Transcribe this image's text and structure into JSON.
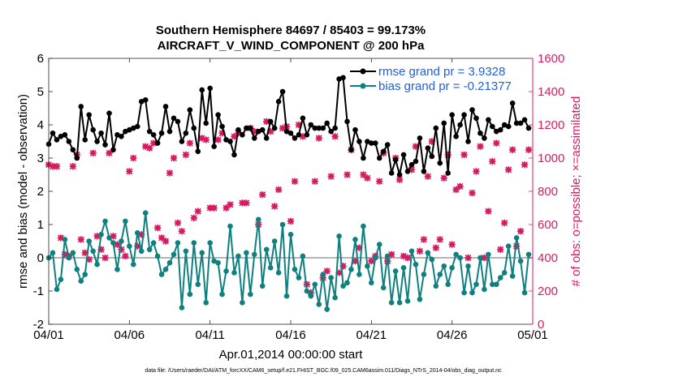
{
  "chart_data": {
    "type": "line",
    "title": "Southern Hemisphere 84697 / 85403 = 99.173%",
    "subtitle": "AIRCRAFT_V_WIND_COMPONENT @ 200 hPa",
    "xlabel": "Apr.01,2014 00:00:00 start",
    "ylabel_left": "rmse and bias (model - observation)",
    "ylabel_right": "# of obs: o=possible; ×=assimilated",
    "footer": "data file: /Users/raeder/DAI/ATM_forcXX/CAM6_setup/f.e21.FHIST_BGC.f09_025.CAM6assim.011/Diags_NTrS_2014-04/obs_diag_output.nc",
    "x_range": [
      0,
      30
    ],
    "x_ticks": [
      0,
      5,
      10,
      15,
      20,
      25,
      30
    ],
    "x_tick_labels": [
      "04/01",
      "04/06",
      "04/11",
      "04/16",
      "04/21",
      "04/26",
      "05/01"
    ],
    "ylim_left": [
      -2,
      6
    ],
    "yticks_left": [
      "-2",
      "-1",
      "0",
      "1",
      "2",
      "3",
      "4",
      "5",
      "6"
    ],
    "ylim_right": [
      0,
      1600
    ],
    "yticks_right": [
      "0",
      "200",
      "400",
      "600",
      "800",
      "1000",
      "1200",
      "1400",
      "1600"
    ],
    "legend": [
      "rmse grand pr = 3.9328",
      "bias grand pr = -0.21377"
    ],
    "colors": {
      "rmse": "#000000",
      "bias": "#0f8080",
      "obs": "#d81b60",
      "zero_line": "#b4b4b4",
      "right_axis": "#d81b60",
      "legend_text": "#1f5fe0"
    },
    "series": [
      {
        "name": "rmse",
        "x": [
          0.0,
          0.25,
          0.5,
          0.75,
          1.0,
          1.25,
          1.5,
          1.75,
          2.0,
          2.25,
          2.5,
          2.75,
          3.0,
          3.25,
          3.5,
          3.75,
          4.0,
          4.25,
          4.5,
          4.75,
          5.0,
          5.25,
          5.5,
          5.75,
          6.0,
          6.25,
          6.5,
          6.75,
          7.0,
          7.25,
          7.5,
          7.75,
          8.0,
          8.25,
          8.5,
          8.75,
          9.0,
          9.25,
          9.5,
          9.75,
          10.0,
          10.25,
          10.5,
          10.75,
          11.0,
          11.25,
          11.5,
          11.75,
          12.0,
          12.25,
          12.5,
          12.75,
          13.0,
          13.25,
          13.5,
          13.75,
          14.0,
          14.25,
          14.5,
          14.75,
          15.0,
          15.25,
          15.5,
          15.75,
          16.0,
          16.25,
          16.5,
          16.75,
          17.0,
          17.25,
          17.5,
          17.75,
          18.0,
          18.25,
          18.5,
          18.75,
          19.0,
          19.25,
          19.5,
          19.75,
          20.0,
          20.25,
          20.5,
          20.75,
          21.0,
          21.25,
          21.5,
          21.75,
          22.0,
          22.25,
          22.5,
          22.75,
          23.0,
          23.25,
          23.5,
          23.75,
          24.0,
          24.25,
          24.5,
          24.75,
          25.0,
          25.25,
          25.5,
          25.75,
          26.0,
          26.25,
          26.5,
          26.75,
          27.0,
          27.25,
          27.5,
          27.75,
          28.0,
          28.25,
          28.5,
          28.75,
          29.0,
          29.25,
          29.5,
          29.75
        ],
        "values": [
          3.42,
          3.75,
          3.55,
          3.65,
          3.7,
          3.5,
          3.25,
          3.0,
          4.55,
          3.55,
          4.3,
          3.85,
          3.5,
          3.75,
          3.4,
          4.35,
          3.25,
          3.7,
          3.65,
          3.8,
          3.85,
          3.9,
          3.95,
          4.7,
          4.75,
          3.8,
          3.7,
          3.45,
          3.75,
          4.55,
          3.8,
          4.2,
          4.1,
          3.5,
          3.75,
          4.45,
          3.9,
          3.2,
          5.05,
          4.05,
          5.1,
          3.35,
          4.3,
          3.95,
          3.55,
          3.5,
          3.1,
          3.85,
          3.7,
          3.9,
          3.9,
          3.6,
          3.8,
          3.85,
          3.6,
          4.1,
          3.9,
          4.7,
          5.0,
          3.8,
          3.75,
          3.6,
          3.7,
          4.2,
          3.7,
          4.0,
          3.9,
          3.9,
          3.9,
          4.05,
          3.8,
          3.9,
          5.38,
          5.42,
          4.1,
          3.25,
          3.85,
          3.5,
          3.0,
          3.5,
          3.45,
          3.45,
          3.0,
          3.2,
          3.4,
          2.55,
          2.95,
          2.5,
          3.1,
          2.6,
          2.8,
          2.9,
          3.6,
          2.6,
          3.3,
          3.05,
          3.9,
          2.85,
          4.05,
          2.55,
          4.3,
          3.65,
          4.0,
          4.3,
          3.5,
          4.45,
          4.2,
          3.75,
          3.6,
          4.15,
          3.95,
          3.8,
          3.85,
          4.0,
          3.95,
          4.65,
          4.05,
          4.05,
          4.15,
          3.9
        ]
      },
      {
        "name": "bias",
        "x": [
          0.0,
          0.25,
          0.5,
          0.75,
          1.0,
          1.25,
          1.5,
          1.75,
          2.0,
          2.25,
          2.5,
          2.75,
          3.0,
          3.25,
          3.5,
          3.75,
          4.0,
          4.25,
          4.5,
          4.75,
          5.0,
          5.25,
          5.5,
          5.75,
          6.0,
          6.25,
          6.5,
          6.75,
          7.0,
          7.25,
          7.5,
          7.75,
          8.0,
          8.25,
          8.5,
          8.75,
          9.0,
          9.25,
          9.5,
          9.75,
          10.0,
          10.25,
          10.5,
          10.75,
          11.0,
          11.25,
          11.5,
          11.75,
          12.0,
          12.25,
          12.5,
          12.75,
          13.0,
          13.25,
          13.5,
          13.75,
          14.0,
          14.25,
          14.5,
          14.75,
          15.0,
          15.25,
          15.5,
          15.75,
          16.0,
          16.25,
          16.5,
          16.75,
          17.0,
          17.25,
          17.5,
          17.75,
          18.0,
          18.25,
          18.5,
          18.75,
          19.0,
          19.25,
          19.5,
          19.75,
          20.0,
          20.25,
          20.5,
          20.75,
          21.0,
          21.25,
          21.5,
          21.75,
          22.0,
          22.25,
          22.5,
          22.75,
          23.0,
          23.25,
          23.5,
          23.75,
          24.0,
          24.25,
          24.5,
          24.75,
          25.0,
          25.25,
          25.5,
          25.75,
          26.0,
          26.25,
          26.5,
          26.75,
          27.0,
          27.25,
          27.5,
          27.75,
          28.0,
          28.25,
          28.5,
          28.75,
          29.0,
          29.25,
          29.5,
          29.75
        ],
        "values": [
          0.0,
          0.15,
          -0.95,
          -0.65,
          0.55,
          0.0,
          0.15,
          -0.35,
          -0.7,
          -0.5,
          0.5,
          0.2,
          -0.2,
          0.7,
          1.1,
          0.6,
          0.45,
          -0.35,
          0.5,
          1.1,
          0.35,
          -0.2,
          0.75,
          0.2,
          1.35,
          0.25,
          0.45,
          0.05,
          -0.5,
          -0.35,
          -0.15,
          0.1,
          0.45,
          -1.5,
          0.2,
          -1.1,
          0.45,
          -0.8,
          0.15,
          -1.35,
          0.45,
          -0.1,
          -0.15,
          -1.1,
          -0.4,
          0.95,
          -0.45,
          0.05,
          -1.35,
          0.15,
          -1.1,
          0.1,
          1.15,
          -0.85,
          0.25,
          -0.3,
          0.5,
          -0.45,
          1.0,
          -1.15,
          0.7,
          -0.35,
          -0.6,
          0.05,
          -1.0,
          -1.15,
          -0.8,
          -1.4,
          -0.5,
          -1.55,
          -0.6,
          -1.2,
          0.65,
          -0.85,
          -0.75,
          -0.35,
          0.55,
          -0.5,
          0.95,
          -0.25,
          -0.75,
          0.0,
          0.4,
          -0.9,
          0.05,
          -1.35,
          -0.4,
          -1.35,
          -0.3,
          -1.3,
          0.2,
          -0.2,
          -1.25,
          -0.5,
          0.15,
          -0.05,
          -0.85,
          -0.5,
          -0.25,
          -0.8,
          -0.3,
          0.1,
          0.0,
          -1.05,
          -0.25,
          -1.05,
          -0.8,
          0.0,
          -0.95,
          0.1,
          -0.8,
          -0.8,
          -0.6,
          -0.45,
          0.35,
          -0.55,
          0.6,
          -0.1,
          -1.05,
          0.1
        ]
      },
      {
        "name": "obs_count",
        "axis": "right",
        "x": [
          0.0,
          0.25,
          0.5,
          0.75,
          1.0,
          1.25,
          1.5,
          1.75,
          2.0,
          2.25,
          2.5,
          2.75,
          3.0,
          3.25,
          3.5,
          3.75,
          4.0,
          4.25,
          4.5,
          4.75,
          5.0,
          5.25,
          5.5,
          5.75,
          6.0,
          6.25,
          6.5,
          6.75,
          7.0,
          7.25,
          7.5,
          7.75,
          8.0,
          8.25,
          8.5,
          8.75,
          9.0,
          9.25,
          9.5,
          9.75,
          10.0,
          10.25,
          10.5,
          10.75,
          11.0,
          11.25,
          11.5,
          11.75,
          12.0,
          12.25,
          12.5,
          12.75,
          13.0,
          13.25,
          13.5,
          13.75,
          14.0,
          14.25,
          14.5,
          14.75,
          15.0,
          15.25,
          15.5,
          15.75,
          16.0,
          16.25,
          16.5,
          16.75,
          17.0,
          17.25,
          17.5,
          17.75,
          18.0,
          18.25,
          18.5,
          18.75,
          19.0,
          19.25,
          19.5,
          19.75,
          20.0,
          20.25,
          20.5,
          20.75,
          21.0,
          21.25,
          21.5,
          21.75,
          22.0,
          22.25,
          22.5,
          22.75,
          23.0,
          23.25,
          23.5,
          23.75,
          24.0,
          24.25,
          24.5,
          24.75,
          25.0,
          25.25,
          25.5,
          25.75,
          26.0,
          26.25,
          26.5,
          26.75,
          27.0,
          27.25,
          27.5,
          27.75,
          28.0,
          28.25,
          28.5,
          28.75,
          29.0,
          29.25,
          29.5,
          29.75
        ],
        "values": [
          960,
          950,
          950,
          520,
          420,
          410,
          950,
          1020,
          510,
          430,
          390,
          1030,
          530,
          450,
          400,
          1030,
          530,
          480,
          450,
          410,
          920,
          1000,
          470,
          540,
          1070,
          1060,
          1090,
          580,
          520,
          500,
          910,
          1000,
          610,
          560,
          1020,
          1090,
          640,
          680,
          1120,
          1110,
          700,
          700,
          1110,
          1150,
          700,
          720,
          1130,
          1150,
          730,
          730,
          1180,
          1160,
          600,
          780,
          1220,
          1160,
          710,
          810,
          1180,
          1190,
          620,
          860,
          1200,
          1130,
          240,
          190,
          860,
          1120,
          280,
          320,
          890,
          1130,
          310,
          350,
          900,
          1050,
          380,
          460,
          900,
          880,
          380,
          410,
          860,
          1030,
          380,
          420,
          1000,
          870,
          410,
          400,
          930,
          1070,
          440,
          510,
          890,
          1100,
          460,
          510,
          880,
          1020,
          480,
          810,
          830,
          1020,
          400,
          790,
          920,
          1070,
          400,
          680,
          980,
          1090,
          450,
          610,
          930,
          1050,
          470,
          560,
          960,
          1050
        ]
      }
    ]
  }
}
